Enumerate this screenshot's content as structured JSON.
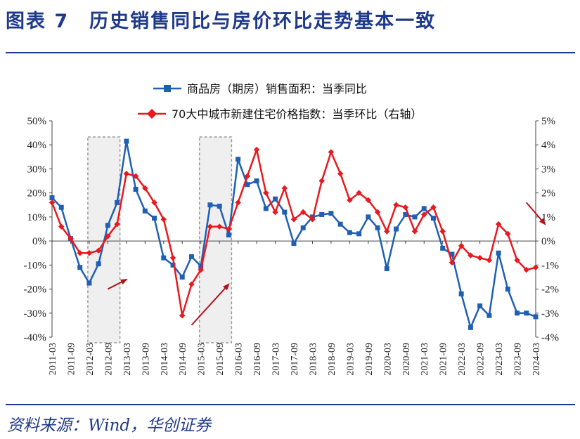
{
  "header": {
    "title": "图表 7　历史销售同比与房价环比走势基本一致"
  },
  "footer": {
    "source": "资料来源：Wind，华创证券"
  },
  "colors": {
    "sales": "#1f5fb4",
    "price": "#e8191f",
    "arrow": "#b5121b",
    "rule": "#1f3a8a",
    "shade": "#efefef"
  },
  "chart_data": {
    "type": "line",
    "legend_position": "top",
    "grid": false,
    "x": [
      "2011-03",
      "2011-06",
      "2011-09",
      "2011-12",
      "2012-03",
      "2012-06",
      "2012-09",
      "2012-12",
      "2013-03",
      "2013-06",
      "2013-09",
      "2013-12",
      "2014-03",
      "2014-06",
      "2014-09",
      "2014-12",
      "2015-03",
      "2015-06",
      "2015-09",
      "2015-12",
      "2016-03",
      "2016-06",
      "2016-09",
      "2016-12",
      "2017-03",
      "2017-06",
      "2017-09",
      "2017-12",
      "2018-03",
      "2018-06",
      "2018-09",
      "2018-12",
      "2019-03",
      "2019-06",
      "2019-09",
      "2019-12",
      "2020-03",
      "2020-06",
      "2020-09",
      "2020-12",
      "2021-03",
      "2021-06",
      "2021-09",
      "2021-12",
      "2022-03",
      "2022-06",
      "2022-09",
      "2022-12",
      "2023-03",
      "2023-06",
      "2023-09",
      "2023-12",
      "2024-03"
    ],
    "x_tick_labels": [
      "2011-03",
      "2011-09",
      "2012-03",
      "2012-09",
      "2013-03",
      "2013-09",
      "2014-03",
      "2014-09",
      "2015-03",
      "2015-09",
      "2016-03",
      "2016-09",
      "2017-03",
      "2017-09",
      "2018-03",
      "2018-09",
      "2019-03",
      "2019-09",
      "2020-03",
      "2020-09",
      "2021-03",
      "2021-09",
      "2022-03",
      "2022-09",
      "2023-03",
      "2023-09",
      "2024-03"
    ],
    "left_axis": {
      "ylim": [
        -40,
        50
      ],
      "ticks": [
        "-40%",
        "-30%",
        "-20%",
        "-10%",
        "0%",
        "10%",
        "20%",
        "30%",
        "40%",
        "50%"
      ]
    },
    "right_axis": {
      "ylim": [
        -4,
        5
      ],
      "ticks": [
        "-4%",
        "-3%",
        "-2%",
        "-1%",
        "0%",
        "1%",
        "2%",
        "3%",
        "4%",
        "5%"
      ]
    },
    "series": [
      {
        "name": "商品房（期房）销售面积：当季同比",
        "axis": "left",
        "marker": "square",
        "values": [
          18,
          14,
          1,
          -11,
          -17.5,
          -9.5,
          6.5,
          16,
          41.5,
          21.5,
          12.5,
          9.5,
          -7,
          -10,
          -15,
          -6.5,
          -10.5,
          15,
          14.5,
          2.5,
          34,
          23.5,
          25,
          13.5,
          17.5,
          12,
          -1,
          5.5,
          10,
          11,
          11.5,
          7,
          3.5,
          3,
          10,
          5.5,
          -11.5,
          5,
          11,
          10,
          13.5,
          9.5,
          -3,
          -5.5,
          -22,
          -36,
          -27,
          -31,
          -5,
          -20,
          -30,
          -30,
          -31.5
        ]
      },
      {
        "name": "70大中城市新建住宅价格指数：当季环比（右轴）",
        "axis": "right",
        "marker": "diamond",
        "values": [
          1.6,
          0.6,
          0.1,
          -0.5,
          -0.5,
          -0.4,
          0.2,
          0.7,
          2.8,
          2.7,
          2.2,
          1.6,
          0.9,
          -0.7,
          -3.1,
          -1.8,
          -1.2,
          0.6,
          0.6,
          0.5,
          1.6,
          2.7,
          3.8,
          2.0,
          1.2,
          2.2,
          0.9,
          1.2,
          0.9,
          2.5,
          3.7,
          2.8,
          1.7,
          2.0,
          1.7,
          1.2,
          0.4,
          1.5,
          1.4,
          0.4,
          1.1,
          1.4,
          0.4,
          -0.9,
          -0.2,
          -0.6,
          -0.7,
          -0.8,
          0.7,
          0.3,
          -0.8,
          -1.2,
          -1.1
        ]
      }
    ],
    "shaded_ranges": [
      [
        "2012-03",
        "2012-12"
      ],
      [
        "2015-03",
        "2015-12"
      ]
    ],
    "annotations": [
      {
        "type": "arrow",
        "from": [
          "2012-09",
          -20
        ],
        "to": [
          "2013-03",
          -16
        ]
      },
      {
        "type": "arrow",
        "from": [
          "2014-12",
          -35
        ],
        "to": [
          "2015-12",
          -18
        ]
      },
      {
        "type": "arrow",
        "from": [
          "2023-12",
          16
        ],
        "to": [
          "2024-06",
          7
        ]
      }
    ]
  }
}
